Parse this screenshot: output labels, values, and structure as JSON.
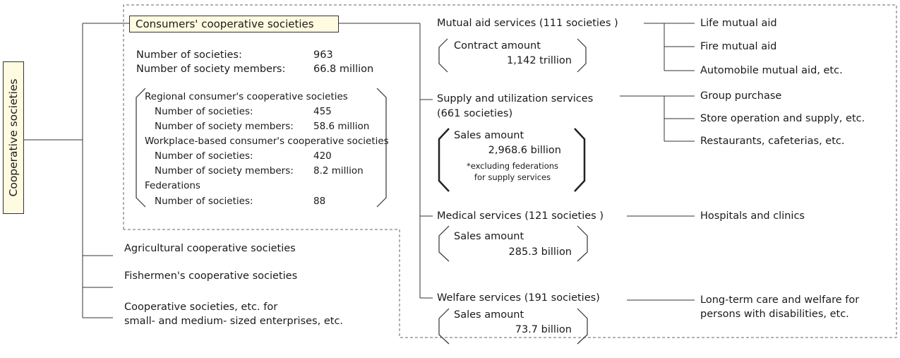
{
  "root": {
    "label": "Cooperative societies"
  },
  "consumer": {
    "title": "Consumers' cooperative societies",
    "summary": [
      {
        "label": "Number of societies:",
        "value": "963"
      },
      {
        "label": "Number of society members:",
        "value": "66.8 million"
      }
    ],
    "regional": {
      "title": "Regional consumer's cooperative societies",
      "rows": [
        {
          "label": "Number of societies:",
          "value": "455"
        },
        {
          "label": "Number of society members:",
          "value": "58.6 million"
        }
      ]
    },
    "workplace": {
      "title": "Workplace-based consumer's cooperative societies",
      "rows": [
        {
          "label": "Number of societies:",
          "value": "420"
        },
        {
          "label": "Number of society members:",
          "value": "8.2 million"
        }
      ]
    },
    "federations": {
      "title": "Federations",
      "rows": [
        {
          "label": "Number of societies:",
          "value": "88"
        }
      ]
    }
  },
  "other_cooperatives": [
    {
      "label": "Agricultural cooperative societies"
    },
    {
      "label": "Fishermen's cooperative societies"
    },
    {
      "label": "Cooperative societies, etc. for",
      "label2": "small- and medium- sized enterprises, etc."
    }
  ],
  "services": [
    {
      "title": "Mutual aid services (111  societies )",
      "amount_label": "Contract amount",
      "amount": "1,142 trillion",
      "children": [
        "Life mutual aid",
        "Fire mutual aid",
        "Automobile mutual aid, etc."
      ]
    },
    {
      "title": "Supply and utilization services",
      "title2": "(661 societies)",
      "amount_label": "Sales amount",
      "amount": "2,968.6 billion",
      "note": "*excluding federations",
      "note2": "for supply services",
      "children": [
        "Group purchase",
        "Store operation and supply, etc.",
        "Restaurants, cafeterias, etc."
      ]
    },
    {
      "title": "Medical services (121 societies )",
      "amount_label": "Sales amount",
      "amount": "285.3 billion",
      "children": [
        "Hospitals and clinics"
      ]
    },
    {
      "title": "Welfare services (191 societies)",
      "amount_label": "Sales amount",
      "amount": "73.7 billion",
      "children": [
        "Long-term care and welfare for",
        "persons with disabilities, etc."
      ]
    }
  ]
}
